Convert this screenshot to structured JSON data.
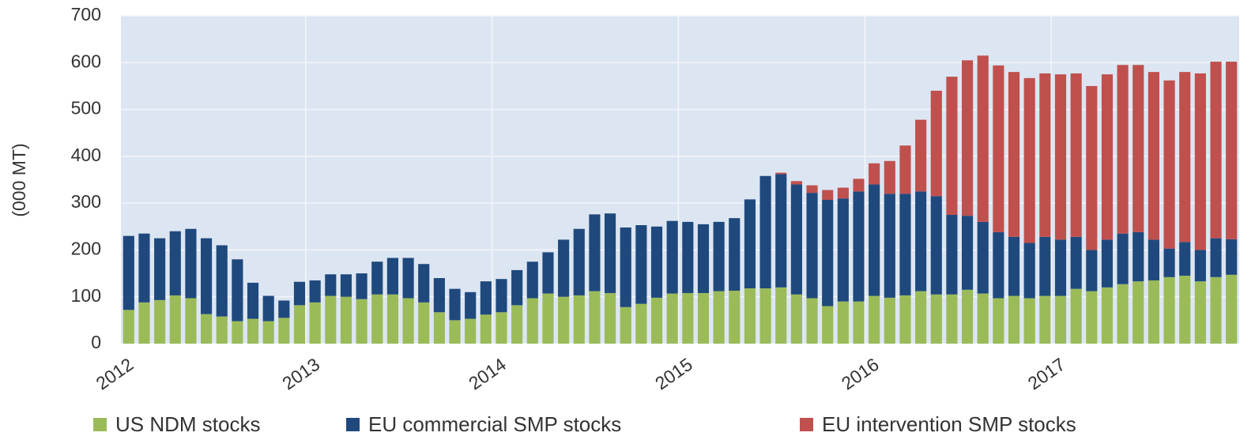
{
  "chart_data": {
    "type": "stacked_bar",
    "y_label": "(000 MT)",
    "categories": [
      "2012",
      null,
      null,
      null,
      null,
      null,
      null,
      null,
      null,
      null,
      null,
      null,
      "2013",
      null,
      null,
      null,
      null,
      null,
      null,
      null,
      null,
      null,
      null,
      null,
      "2014",
      null,
      null,
      null,
      null,
      null,
      null,
      null,
      null,
      null,
      null,
      null,
      "2015",
      null,
      null,
      null,
      null,
      null,
      null,
      null,
      null,
      null,
      null,
      null,
      "2016",
      null,
      null,
      null,
      null,
      null,
      null,
      null,
      null,
      null,
      null,
      null,
      "2017",
      null,
      null,
      null,
      null,
      null,
      null,
      null,
      null,
      null,
      null,
      null
    ],
    "series": [
      {
        "name": "US NDM stocks",
        "color": "#9bbb59",
        "values": [
          72,
          88,
          93,
          103,
          97,
          63,
          58,
          48,
          53,
          48,
          55,
          82,
          88,
          102,
          100,
          95,
          105,
          105,
          97,
          88,
          67,
          50,
          53,
          62,
          67,
          82,
          97,
          107,
          100,
          103,
          112,
          108,
          78,
          85,
          98,
          107,
          108,
          108,
          112,
          113,
          118,
          118,
          120,
          105,
          97,
          80,
          90,
          90,
          102,
          98,
          103,
          112,
          105,
          105,
          115,
          107,
          97,
          102,
          97,
          102,
          102,
          117,
          112,
          120,
          127,
          133,
          135,
          142,
          145,
          133,
          142,
          147
        ]
      },
      {
        "name": "EU commercial SMP stocks",
        "color": "#1f497d",
        "values": [
          158,
          147,
          132,
          137,
          148,
          162,
          152,
          132,
          77,
          54,
          37,
          50,
          47,
          46,
          48,
          55,
          70,
          78,
          86,
          82,
          73,
          67,
          57,
          71,
          71,
          75,
          78,
          88,
          122,
          142,
          164,
          170,
          170,
          168,
          152,
          155,
          152,
          147,
          148,
          155,
          190,
          240,
          242,
          235,
          225,
          227,
          220,
          235,
          238,
          222,
          217,
          213,
          210,
          170,
          158,
          153,
          141,
          126,
          118,
          126,
          120,
          111,
          88,
          102,
          108,
          105,
          87,
          61,
          72,
          67,
          83,
          76
        ]
      },
      {
        "name": "EU intervention SMP stocks",
        "color": "#c0504d",
        "values": [
          0,
          0,
          0,
          0,
          0,
          0,
          0,
          0,
          0,
          0,
          0,
          0,
          0,
          0,
          0,
          0,
          0,
          0,
          0,
          0,
          0,
          0,
          0,
          0,
          0,
          0,
          0,
          0,
          0,
          0,
          0,
          0,
          0,
          0,
          0,
          0,
          0,
          0,
          0,
          0,
          0,
          0,
          3,
          7,
          16,
          21,
          23,
          27,
          45,
          70,
          103,
          153,
          225,
          295,
          332,
          355,
          356,
          352,
          352,
          349,
          353,
          349,
          350,
          353,
          360,
          357,
          358,
          359,
          363,
          377,
          377,
          379
        ]
      }
    ],
    "ylim": [
      0,
      700
    ],
    "yticks": [
      0,
      100,
      200,
      300,
      400,
      500,
      600,
      700
    ],
    "grid": true,
    "legend": "bottom"
  }
}
